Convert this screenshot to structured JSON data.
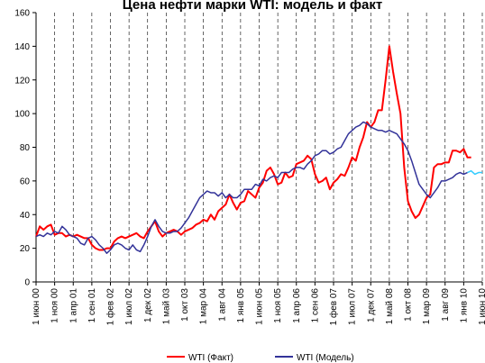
{
  "chart_data": {
    "type": "line",
    "title": "Цена нефти марки WTI: модель и факт",
    "categories": [
      "1 июн 00",
      null,
      null,
      null,
      null,
      "1 ноя 00",
      null,
      null,
      null,
      null,
      "1 апр 01",
      null,
      null,
      null,
      null,
      "1 сен 01",
      null,
      null,
      null,
      null,
      "1 фев 02",
      null,
      null,
      null,
      null,
      "1 июл 02",
      null,
      null,
      null,
      null,
      "1 дек 02",
      null,
      null,
      null,
      null,
      "1 май 03",
      null,
      null,
      null,
      null,
      "1 окт 03",
      null,
      null,
      null,
      null,
      "1 мар 04",
      null,
      null,
      null,
      null,
      "1 авг 04",
      null,
      null,
      null,
      null,
      "1 янв 05",
      null,
      null,
      null,
      null,
      "1 июн 05",
      null,
      null,
      null,
      null,
      "1 ноя 05",
      null,
      null,
      null,
      null,
      "1 апр 06",
      null,
      null,
      null,
      null,
      "1 сен 06",
      null,
      null,
      null,
      null,
      "1 фев 07",
      null,
      null,
      null,
      null,
      "1 июл 07",
      null,
      null,
      null,
      null,
      "1 дек 07",
      null,
      null,
      null,
      null,
      "1 май 08",
      null,
      null,
      null,
      null,
      "1 окт 08",
      null,
      null,
      null,
      null,
      "1 мар 09",
      null,
      null,
      null,
      null,
      "1 авг 09",
      null,
      null,
      null,
      null,
      "1 янв 10",
      null,
      null,
      null,
      null,
      "1 июн 10"
    ],
    "series": [
      {
        "name": "WTI (Факт)",
        "color": "#ff0000",
        "values": [
          27,
          33,
          31,
          33,
          34,
          28,
          29,
          29,
          27,
          28,
          27,
          28,
          27,
          26,
          26,
          22,
          20,
          19,
          19,
          20,
          20,
          24,
          26,
          27,
          26,
          27,
          28,
          29,
          27,
          26,
          30,
          33,
          36,
          30,
          27,
          29,
          30,
          31,
          30,
          28,
          30,
          31,
          32,
          34,
          35,
          37,
          36,
          40,
          37,
          42,
          44,
          46,
          52,
          47,
          43,
          47,
          48,
          54,
          52,
          50,
          56,
          59,
          66,
          68,
          64,
          58,
          59,
          65,
          62,
          63,
          70,
          71,
          72,
          75,
          73,
          64,
          59,
          60,
          62,
          55,
          59,
          61,
          64,
          63,
          68,
          74,
          72,
          80,
          86,
          95,
          92,
          95,
          102,
          102,
          120,
          140,
          125,
          112,
          100,
          68,
          48,
          42,
          38,
          40,
          45,
          50,
          52,
          68,
          70,
          70,
          71,
          71,
          78,
          78,
          77,
          79,
          74,
          74,
          null,
          null,
          null
        ]
      },
      {
        "name": "WTI (Модель)",
        "color": "#333399",
        "values": [
          27,
          28,
          27,
          29,
          28,
          30,
          29,
          33,
          31,
          28,
          27,
          26,
          23,
          22,
          26,
          27,
          25,
          22,
          20,
          17,
          19,
          22,
          23,
          22,
          20,
          19,
          22,
          19,
          18,
          22,
          27,
          33,
          37,
          33,
          30,
          29,
          29,
          30,
          30,
          32,
          35,
          38,
          42,
          46,
          50,
          52,
          54,
          53,
          53,
          51,
          53,
          50,
          52,
          50,
          50,
          52,
          55,
          55,
          55,
          58,
          57,
          61,
          60,
          62,
          63,
          62,
          65,
          65,
          65,
          67,
          68,
          68,
          67,
          70,
          72,
          75,
          76,
          78,
          78,
          76,
          77,
          79,
          80,
          84,
          88,
          90,
          92,
          93,
          95,
          94,
          92,
          91,
          90,
          90,
          89,
          90,
          89,
          88,
          85,
          82,
          78,
          72,
          65,
          58,
          55,
          52,
          50,
          53,
          56,
          60,
          60,
          61,
          62,
          64,
          65,
          64,
          65,
          null,
          null,
          null,
          null
        ]
      },
      {
        "color": "#33ccff",
        "values": [
          null,
          null,
          null,
          null,
          null,
          null,
          null,
          null,
          null,
          null,
          null,
          null,
          null,
          null,
          null,
          null,
          null,
          null,
          null,
          null,
          null,
          null,
          null,
          null,
          null,
          null,
          null,
          null,
          null,
          null,
          null,
          null,
          null,
          null,
          null,
          null,
          null,
          null,
          null,
          null,
          null,
          null,
          null,
          null,
          null,
          null,
          null,
          null,
          null,
          null,
          null,
          null,
          null,
          null,
          null,
          null,
          null,
          null,
          null,
          null,
          null,
          null,
          null,
          null,
          null,
          null,
          null,
          null,
          null,
          null,
          null,
          null,
          null,
          null,
          null,
          null,
          null,
          null,
          null,
          null,
          null,
          null,
          null,
          null,
          null,
          null,
          null,
          null,
          null,
          null,
          null,
          null,
          null,
          null,
          null,
          null,
          null,
          null,
          null,
          null,
          null,
          null,
          null,
          null,
          null,
          null,
          null,
          null,
          null,
          null,
          null,
          null,
          null,
          null,
          null,
          null,
          65,
          66,
          64,
          65,
          65
        ]
      }
    ],
    "ylim": [
      0,
      160
    ],
    "yticks": [
      0,
      20,
      40,
      60,
      80,
      100,
      120,
      140,
      160
    ],
    "grid": "x",
    "legend": "bottom"
  }
}
